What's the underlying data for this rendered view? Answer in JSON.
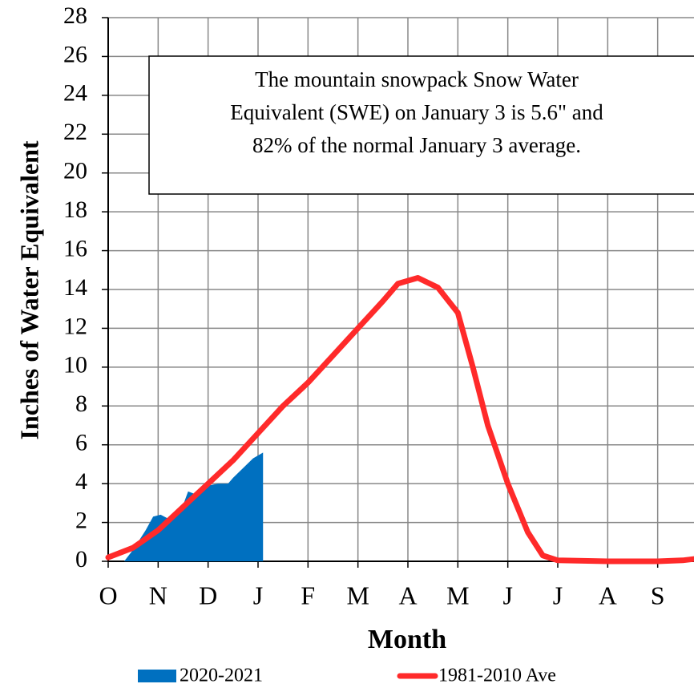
{
  "chart_data": {
    "type": "area-line",
    "xlabel": "Month",
    "ylabel": "Inches of Water Equivalent",
    "annotation": [
      "The mountain snowpack Snow Water",
      "Equivalent (SWE) on January 3 is 5.6\" and",
      "82% of the normal January 3 average."
    ],
    "xlim": [
      0,
      12
    ],
    "xticks": [
      {
        "value": 0,
        "label": "O"
      },
      {
        "value": 1,
        "label": "N"
      },
      {
        "value": 2,
        "label": "D"
      },
      {
        "value": 3,
        "label": "J"
      },
      {
        "value": 4,
        "label": "F"
      },
      {
        "value": 5,
        "label": "M"
      },
      {
        "value": 6,
        "label": "A"
      },
      {
        "value": 7,
        "label": "M"
      },
      {
        "value": 8,
        "label": "J"
      },
      {
        "value": 9,
        "label": "J"
      },
      {
        "value": 10,
        "label": "A"
      },
      {
        "value": 11,
        "label": "S"
      }
    ],
    "ylim": [
      0,
      28
    ],
    "yticks": [
      0,
      2,
      4,
      6,
      8,
      10,
      12,
      14,
      16,
      18,
      20,
      22,
      24,
      26,
      28
    ],
    "grid": true,
    "series": [
      {
        "name": "2020-2021",
        "kind": "area",
        "color": "#0070c0",
        "x": [
          0.32,
          0.5,
          0.75,
          0.9,
          1.05,
          1.2,
          1.5,
          1.6,
          1.8,
          2.0,
          2.2,
          2.4,
          2.5,
          2.7,
          2.9,
          3.1
        ],
        "values": [
          0,
          0.6,
          1.6,
          2.3,
          2.4,
          2.2,
          2.9,
          3.6,
          3.4,
          3.9,
          4.0,
          4.0,
          4.3,
          4.8,
          5.3,
          5.6
        ]
      },
      {
        "name": "1981-2010 Ave",
        "kind": "line",
        "color": "#ff2a2a",
        "x": [
          0,
          0.5,
          1,
          1.5,
          2,
          2.5,
          3,
          3.5,
          4,
          4.5,
          5,
          5.5,
          5.8,
          6.2,
          6.6,
          7,
          7.3,
          7.6,
          8,
          8.4,
          8.7,
          9,
          10,
          11,
          11.5,
          12
        ],
        "values": [
          0.2,
          0.7,
          1.6,
          2.8,
          4.0,
          5.2,
          6.6,
          8.0,
          9.2,
          10.6,
          12.0,
          13.4,
          14.3,
          14.6,
          14.1,
          12.8,
          10.0,
          7.0,
          4.0,
          1.5,
          0.3,
          0.05,
          0,
          0,
          0.05,
          0.2
        ]
      }
    ]
  }
}
